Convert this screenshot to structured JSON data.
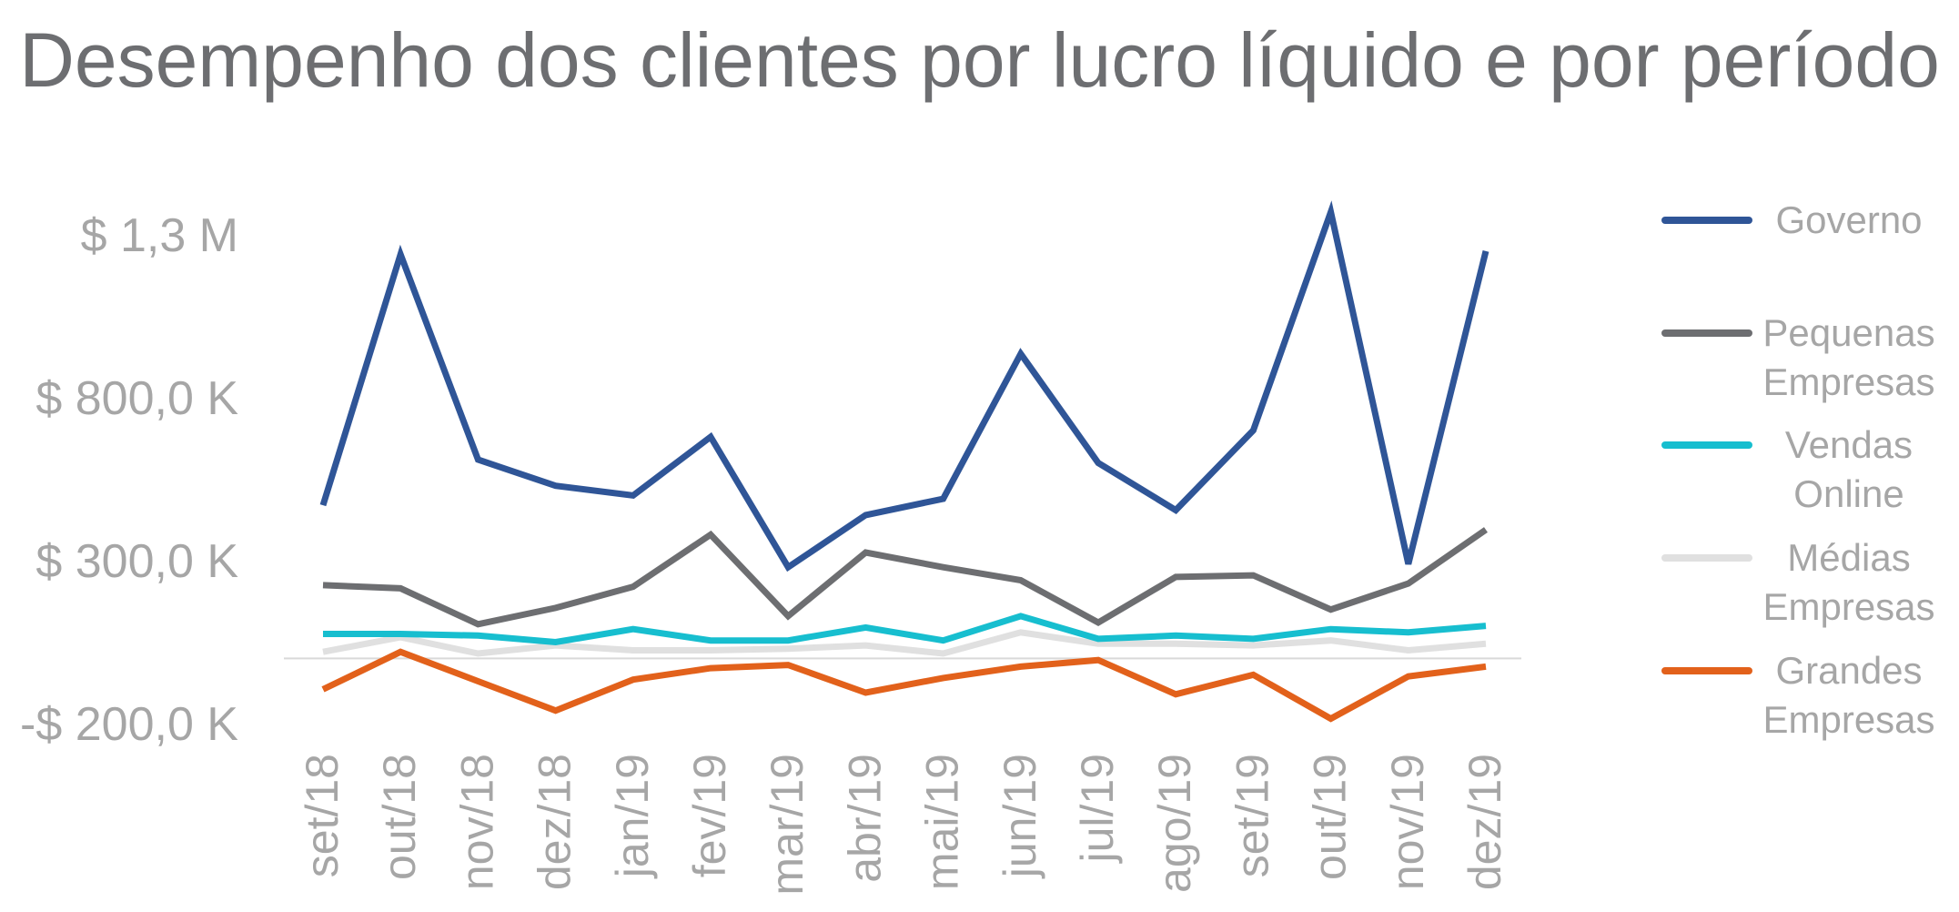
{
  "chart_data": {
    "type": "line",
    "title": "Desempenho dos clientes por lucro líquido e por período",
    "xlabel": "",
    "ylabel": "",
    "categories": [
      "set/18",
      "out/18",
      "nov/18",
      "dez/18",
      "jan/19",
      "fev/19",
      "mar/19",
      "abr/19",
      "mai/19",
      "jun/19",
      "jul/19",
      "ago/19",
      "set/19",
      "out/19",
      "nov/19",
      "dez/19"
    ],
    "y_ticks": [
      {
        "value": 1300000,
        "label": "$ 1,3 M"
      },
      {
        "value": 800000,
        "label": "$ 800,0 K"
      },
      {
        "value": 300000,
        "label": "$ 300,0 K"
      },
      {
        "value": -200000,
        "label": "-$ 200,0 K"
      }
    ],
    "ylim": [
      -200000,
      1300000
    ],
    "grid": false,
    "legend_position": "right",
    "series": [
      {
        "name": "Governo",
        "color": "#2f5597",
        "values": [
          470000,
          1240000,
          610000,
          530000,
          500000,
          680000,
          280000,
          440000,
          490000,
          935000,
          600000,
          455000,
          700000,
          1370000,
          290000,
          1250000
        ]
      },
      {
        "name": "Pequenas Empresas",
        "color": "#6d6e71",
        "values": [
          225000,
          215000,
          105000,
          155000,
          220000,
          380000,
          130000,
          325000,
          280000,
          240000,
          110000,
          250000,
          255000,
          150000,
          230000,
          395000
        ]
      },
      {
        "name": "Vendas Online",
        "color": "#17becf",
        "values": [
          75000,
          75000,
          70000,
          50000,
          90000,
          55000,
          55000,
          95000,
          55000,
          130000,
          60000,
          70000,
          60000,
          90000,
          80000,
          100000
        ]
      },
      {
        "name": "Médias Empresas",
        "color": "#e0e0e0",
        "values": [
          20000,
          65000,
          15000,
          40000,
          25000,
          25000,
          30000,
          40000,
          15000,
          80000,
          45000,
          45000,
          40000,
          55000,
          25000,
          45000
        ]
      },
      {
        "name": "Grandes Empresas",
        "color": "#e2611b",
        "values": [
          -95000,
          20000,
          -70000,
          -160000,
          -65000,
          -30000,
          -20000,
          -105000,
          -60000,
          -25000,
          -5000,
          -110000,
          -50000,
          -185000,
          -55000,
          -25000
        ]
      }
    ],
    "legend_labels": [
      [
        "Governo"
      ],
      [
        "Pequenas",
        "Empresas"
      ],
      [
        "Vendas",
        "Online"
      ],
      [
        "Médias",
        "Empresas"
      ],
      [
        "Grandes",
        "Empresas"
      ]
    ]
  }
}
